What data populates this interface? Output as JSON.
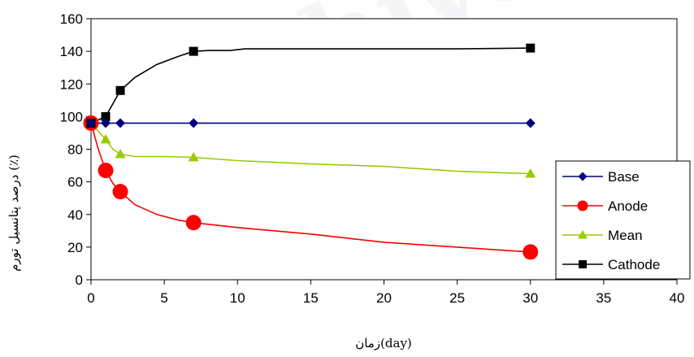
{
  "chart_data": {
    "type": "line",
    "xlabel": "زمان(day)",
    "ylabel": "درصد پتانسیل تورم (٪)",
    "xlim": [
      0,
      40
    ],
    "ylim": [
      0,
      160
    ],
    "x_ticks": [
      "0",
      "5",
      "10",
      "15",
      "20",
      "25",
      "30",
      "35",
      "40"
    ],
    "y_ticks": [
      "0",
      "20",
      "40",
      "60",
      "80",
      "100",
      "120",
      "140",
      "160"
    ],
    "grid": false,
    "legend_position": "right",
    "series": [
      {
        "name": "Base",
        "color": "#00007f",
        "marker": "diamond",
        "points": [
          [
            0,
            96
          ],
          [
            1,
            96
          ],
          [
            2,
            96
          ],
          [
            7,
            96
          ],
          [
            30,
            96
          ]
        ],
        "curve": [
          [
            0,
            96
          ],
          [
            30,
            96
          ]
        ]
      },
      {
        "name": "Anode",
        "color": "#ff0000",
        "marker": "circle",
        "points": [
          [
            0,
            96
          ],
          [
            1,
            67
          ],
          [
            2,
            54
          ],
          [
            7,
            35
          ],
          [
            30,
            17
          ]
        ],
        "curve": [
          [
            0,
            96
          ],
          [
            0.5,
            80
          ],
          [
            1,
            67
          ],
          [
            1.5,
            59
          ],
          [
            2,
            54
          ],
          [
            3,
            46
          ],
          [
            4.5,
            40
          ],
          [
            6,
            36.5
          ],
          [
            7,
            35
          ],
          [
            10,
            32
          ],
          [
            15,
            28
          ],
          [
            20,
            23
          ],
          [
            25,
            20
          ],
          [
            30,
            17
          ]
        ]
      },
      {
        "name": "Mean",
        "color": "#99cc00",
        "marker": "triangle",
        "points": [
          [
            0,
            96
          ],
          [
            1,
            86
          ],
          [
            2,
            77
          ],
          [
            7,
            75
          ],
          [
            30,
            65
          ]
        ],
        "curve": [
          [
            0,
            96
          ],
          [
            0.5,
            91
          ],
          [
            1,
            86
          ],
          [
            1.5,
            80
          ],
          [
            2,
            77
          ],
          [
            3,
            75.5
          ],
          [
            5,
            75.5
          ],
          [
            7,
            75
          ],
          [
            10,
            73
          ],
          [
            15,
            71
          ],
          [
            20,
            69.5
          ],
          [
            25,
            66.5
          ],
          [
            30,
            65
          ]
        ]
      },
      {
        "name": "Cathode",
        "color": "#000000",
        "marker": "square",
        "points": [
          [
            0,
            96
          ],
          [
            1,
            100
          ],
          [
            2,
            116
          ],
          [
            7,
            140
          ],
          [
            30,
            142
          ]
        ],
        "curve": [
          [
            0,
            96
          ],
          [
            1,
            100
          ],
          [
            2,
            116
          ],
          [
            3,
            124
          ],
          [
            4.5,
            132
          ],
          [
            6,
            137
          ],
          [
            7,
            140
          ],
          [
            8,
            140.5
          ],
          [
            9.5,
            140.5
          ],
          [
            10.5,
            141.5
          ],
          [
            15,
            141.5
          ],
          [
            20,
            141.5
          ],
          [
            25,
            141.5
          ],
          [
            30,
            142
          ]
        ]
      }
    ]
  }
}
